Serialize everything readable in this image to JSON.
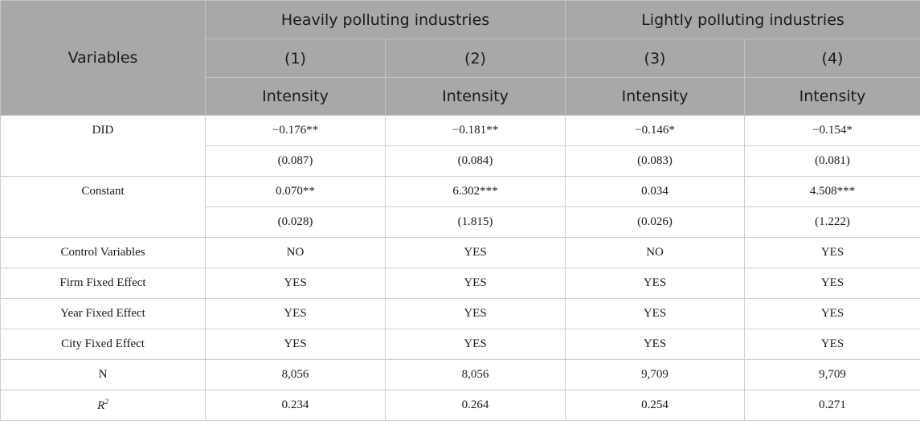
{
  "header": {
    "variables_label": "Variables",
    "group_heavy": "Heavily polluting industries",
    "group_light": "Lightly polluting industries",
    "model_numbers": [
      "(1)",
      "(2)",
      "(3)",
      "(4)"
    ],
    "dependent_vars": [
      "Intensity",
      "Intensity",
      "Intensity",
      "Intensity"
    ]
  },
  "rows": {
    "did": {
      "label": "DID",
      "coef": [
        "−0.176**",
        "−0.181**",
        "−0.146*",
        "−0.154*"
      ],
      "se": [
        "(0.087)",
        "(0.084)",
        "(0.083)",
        "(0.081)"
      ]
    },
    "constant": {
      "label": "Constant",
      "coef": [
        "0.070**",
        "6.302***",
        "0.034",
        "4.508***"
      ],
      "se": [
        "(0.028)",
        "(1.815)",
        "(0.026)",
        "(1.222)"
      ]
    },
    "controls": {
      "label": "Control Variables",
      "values": [
        "NO",
        "YES",
        "NO",
        "YES"
      ]
    },
    "firm_fe": {
      "label": "Firm Fixed Effect",
      "values": [
        "YES",
        "YES",
        "YES",
        "YES"
      ]
    },
    "year_fe": {
      "label": "Year Fixed Effect",
      "values": [
        "YES",
        "YES",
        "YES",
        "YES"
      ]
    },
    "city_fe": {
      "label": "City Fixed Effect",
      "values": [
        "YES",
        "YES",
        "YES",
        "YES"
      ]
    },
    "n": {
      "label": "N",
      "values": [
        "8,056",
        "8,056",
        "9,709",
        "9,709"
      ]
    },
    "r2": {
      "label_base": "R",
      "label_sup": "2",
      "values": [
        "0.234",
        "0.264",
        "0.254",
        "0.271"
      ]
    }
  }
}
